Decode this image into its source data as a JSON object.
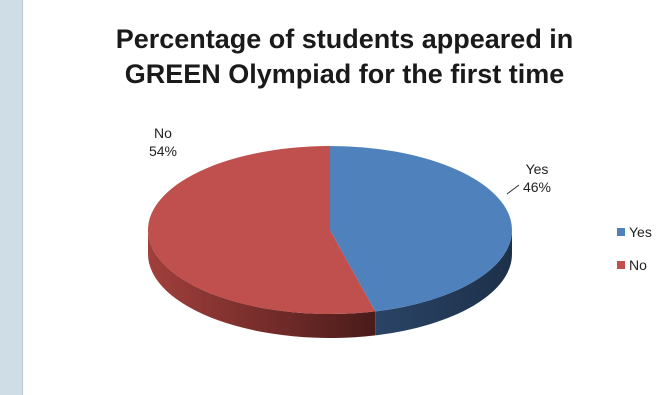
{
  "chart_data": {
    "type": "pie",
    "title_lines": [
      "Percentage of students appeared in",
      "GREEN Olympiad for the first time"
    ],
    "categories": [
      "Yes",
      "No"
    ],
    "values": [
      46,
      54
    ],
    "data_labels": [
      {
        "name": "Yes",
        "value": "46%"
      },
      {
        "name": "No",
        "value": "54%"
      }
    ],
    "legend": {
      "position": "right",
      "entries": [
        "Yes",
        "No"
      ]
    },
    "colors": {
      "Yes": "#4f81bd",
      "No": "#c0504d"
    },
    "style": "3d"
  }
}
